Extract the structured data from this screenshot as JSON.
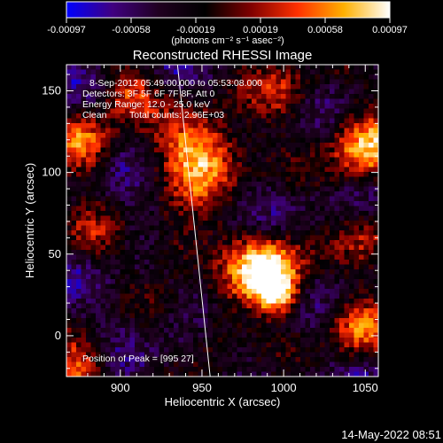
{
  "chart_data": {
    "type": "heatmap",
    "title": "Reconstructed RHESSI Image",
    "xlabel": "Heliocentric X (arcsec)",
    "ylabel": "Heliocentric Y (arcsec)",
    "xlim": [
      867,
      1058
    ],
    "ylim": [
      -25,
      166
    ],
    "x_ticks": [
      900,
      950,
      1000,
      1050
    ],
    "y_ticks": [
      0,
      50,
      100,
      150
    ],
    "colorbar": {
      "ticks": [
        "-0.00097",
        "-0.00058",
        "-0.00019",
        "0.00019",
        "0.00058",
        "0.00097"
      ],
      "range": [
        -0.00097,
        0.00097
      ],
      "units": "(photons cm⁻² s⁻¹ asec⁻²)",
      "colormap": [
        "#0000ff",
        "#400080",
        "#200020",
        "#000000",
        "#800000",
        "#ff3000",
        "#ffb000",
        "#ffffff"
      ]
    },
    "annotations": {
      "time_range": "8-Sep-2012 05:49:00.000 to 05:53:08.000",
      "detectors": "Detectors: 3F 5F 6F 7F 8F, Att 0",
      "energy_range": "Energy Range: 12.0 - 25.0 keV",
      "algorithm": "Clean",
      "total_counts": "Total counts: 2.96E+03",
      "peak": "Position of Peak = [995 27]"
    },
    "sources": [
      {
        "x": 990,
        "y": 40,
        "sigma": 16,
        "amp": 1.0
      },
      {
        "x": 997,
        "y": 25,
        "sigma": 8,
        "amp": 0.5
      },
      {
        "x": 950,
        "y": 112,
        "sigma": 18,
        "amp": 0.85
      },
      {
        "x": 1050,
        "y": 115,
        "sigma": 16,
        "amp": 0.75
      },
      {
        "x": 878,
        "y": 118,
        "sigma": 14,
        "amp": 0.6
      },
      {
        "x": 905,
        "y": 150,
        "sigma": 12,
        "amp": 0.45
      },
      {
        "x": 935,
        "y": 55,
        "sigma": 14,
        "amp": 0.4
      },
      {
        "x": 1000,
        "y": 150,
        "sigma": 14,
        "amp": 0.4
      },
      {
        "x": 1045,
        "y": 5,
        "sigma": 14,
        "amp": 0.55
      },
      {
        "x": 875,
        "y": -18,
        "sigma": 14,
        "amp": 0.55
      },
      {
        "x": 1055,
        "y": 60,
        "sigma": 12,
        "amp": 0.35
      },
      {
        "x": 960,
        "y": 0,
        "sigma": 12,
        "amp": 0.35
      },
      {
        "x": 880,
        "y": 60,
        "sigma": 12,
        "amp": 0.3
      }
    ],
    "limb_curve_x": [
      935,
      945,
      955
    ],
    "limb_curve_y": [
      166,
      70,
      -25
    ]
  },
  "footer": {
    "timestamp": "14-May-2022 08:51"
  }
}
